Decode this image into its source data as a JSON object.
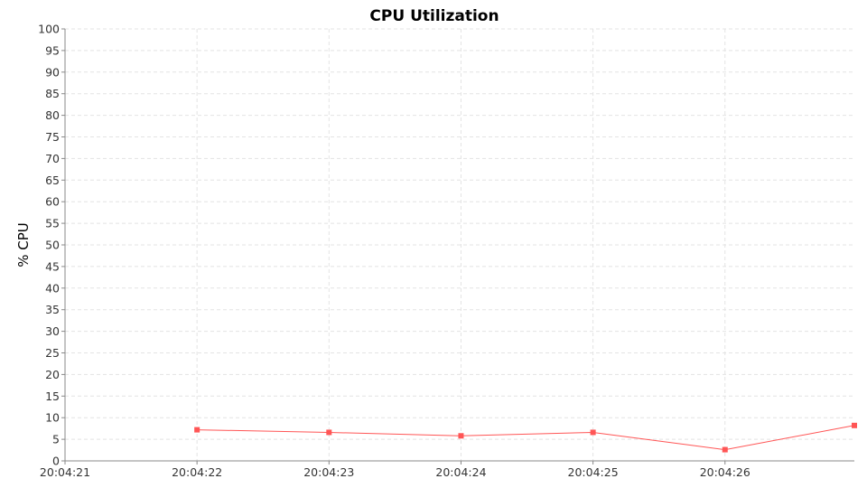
{
  "chart_data": {
    "type": "line",
    "title": "CPU Utilization",
    "xlabel": "",
    "ylabel": "% CPU",
    "ylim": [
      0,
      100
    ],
    "yticks": [
      0,
      5,
      10,
      15,
      20,
      25,
      30,
      35,
      40,
      45,
      50,
      55,
      60,
      65,
      70,
      75,
      80,
      85,
      90,
      95,
      100
    ],
    "xlim": [
      "20:04:21",
      "20:04:26.98"
    ],
    "xticks": [
      "20:04:21",
      "20:04:22",
      "20:04:23",
      "20:04:24",
      "20:04:25",
      "20:04:26"
    ],
    "grid": true,
    "series": [
      {
        "color": "#ff5555",
        "points": [
          {
            "x": "20:04:22",
            "y": 7.2
          },
          {
            "x": "20:04:23",
            "y": 6.6
          },
          {
            "x": "20:04:24",
            "y": 5.8
          },
          {
            "x": "20:04:25",
            "y": 6.6
          },
          {
            "x": "20:04:26",
            "y": 2.6
          },
          {
            "x": "20:04:26.98",
            "y": 8.2
          }
        ]
      }
    ]
  }
}
